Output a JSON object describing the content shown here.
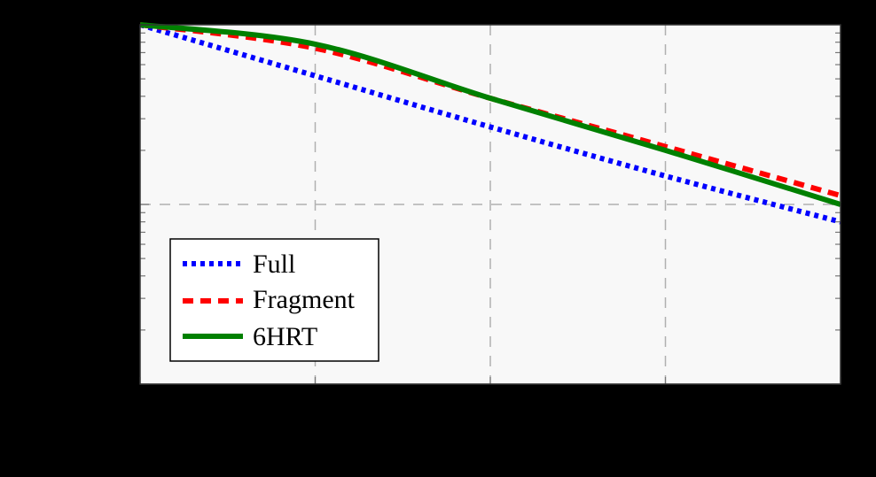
{
  "chart_data": {
    "type": "line",
    "title": "",
    "xlabel": "",
    "ylabel": "",
    "yscale": "log",
    "x": [
      0,
      1,
      2,
      3,
      4
    ],
    "xlim": [
      0,
      4
    ],
    "ylim": [
      0.01,
      1
    ],
    "grid": true,
    "legend_position": "lower left",
    "series": [
      {
        "name": "Full",
        "color": "#0000ff",
        "style": "dotted",
        "values": [
          1.0,
          0.52,
          0.27,
          0.144,
          0.08
        ]
      },
      {
        "name": "Fragment",
        "color": "#ff0000",
        "style": "dashed",
        "values": [
          1.0,
          0.74,
          0.39,
          0.21,
          0.112
        ]
      },
      {
        "name": "6HRT",
        "color": "#008000",
        "style": "solid",
        "values": [
          1.0,
          0.78,
          0.39,
          0.2,
          0.1
        ]
      }
    ],
    "note": "Axis tick labels and axis titles are rendered black on black background and are not legible; x positions are the 5 vertical gridline/edge positions; y values are relative on a log scale with top edge = 1."
  },
  "colors": {
    "background": "#000000",
    "plot_background": "#f8f8f8",
    "grid": "#b0b0b0",
    "frame": "#333333"
  },
  "legend": {
    "items": [
      {
        "label": "Full"
      },
      {
        "label": "Fragment"
      },
      {
        "label": "6HRT"
      }
    ]
  }
}
